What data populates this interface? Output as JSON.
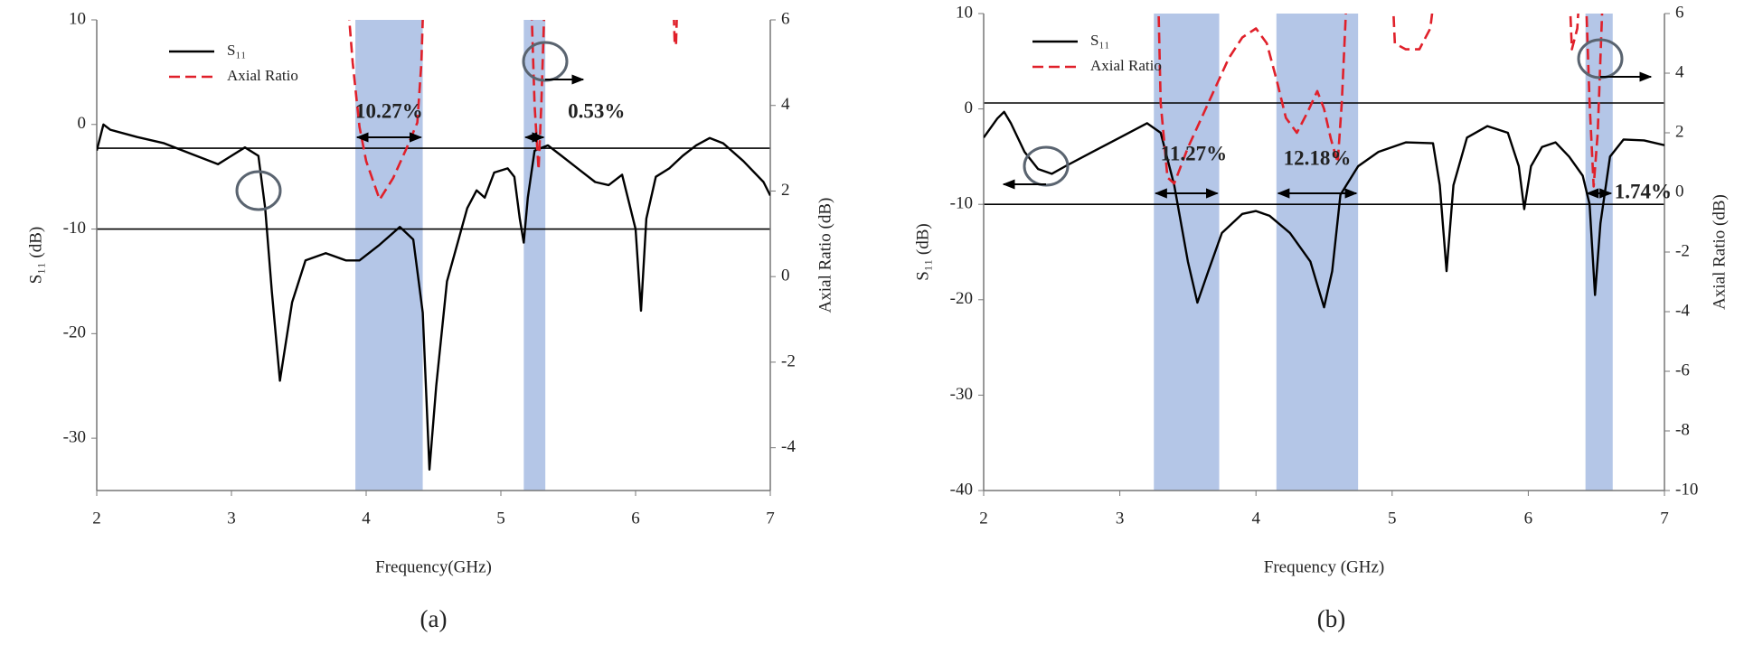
{
  "chart_data": [
    {
      "type": "line",
      "x_label": "Frequency(GHz)",
      "y_label": "S₁₁ (dB)",
      "y2_label": "Axial Ratio (dB)",
      "panel_label": "(a)",
      "xlim": [
        2,
        7
      ],
      "xticks": [
        2,
        3,
        4,
        5,
        6,
        7
      ],
      "ylim": [
        -35,
        10
      ],
      "yticks": [
        -30,
        -20,
        -10,
        0,
        10
      ],
      "y2lim": [
        -5,
        6
      ],
      "y2ticks": [
        -4,
        -2,
        0,
        2,
        4,
        6
      ],
      "series": [
        {
          "name": "S₁₁",
          "color": "#000000",
          "dash": false,
          "x": [
            2,
            2.05,
            2.1,
            2.3,
            2.5,
            2.7,
            2.9,
            3.0,
            3.1,
            3.2,
            3.25,
            3.3,
            3.36,
            3.45,
            3.55,
            3.7,
            3.85,
            3.95,
            4.1,
            4.25,
            4.35,
            4.42,
            4.47,
            4.52,
            4.6,
            4.75,
            4.82,
            4.88,
            4.95,
            5.05,
            5.1,
            5.14,
            5.17,
            5.2,
            5.25,
            5.35,
            5.45,
            5.6,
            5.7,
            5.8,
            5.9,
            6.0,
            6.04,
            6.08,
            6.15,
            6.25,
            6.35,
            6.45,
            6.55,
            6.65,
            6.8,
            6.95,
            7.0
          ],
          "values": [
            -2.5,
            0,
            -0.5,
            -1.2,
            -1.8,
            -2.8,
            -3.8,
            -3,
            -2.2,
            -3,
            -8,
            -16,
            -24.5,
            -17,
            -13,
            -12.3,
            -13,
            -13,
            -11.5,
            -9.8,
            -11,
            -18,
            -33,
            -25,
            -15,
            -8,
            -6.3,
            -7,
            -4.6,
            -4.2,
            -5,
            -9,
            -11.3,
            -7,
            -2.5,
            -2,
            -3,
            -4.5,
            -5.5,
            -5.8,
            -4.8,
            -10,
            -17.8,
            -9,
            -5,
            -4.2,
            -3,
            -2,
            -1.3,
            -1.8,
            -3.5,
            -5.5,
            -6.8
          ]
        },
        {
          "name": "Axial Ratio",
          "color": "#e0202a",
          "dash": true,
          "axis": "y2",
          "x": [
            3.85,
            3.9,
            3.95,
            4.0,
            4.1,
            4.2,
            4.3,
            4.38,
            4.41,
            4.43,
            4.8,
            5.22,
            5.25,
            5.28,
            5.3,
            5.33,
            5.8,
            6.28,
            6.29,
            6.3,
            6.31
          ],
          "values": [
            7,
            5,
            3.5,
            2.7,
            1.8,
            2.3,
            3.0,
            3.6,
            5,
            7,
            null,
            7,
            4,
            2.5,
            4,
            7,
            null,
            6.5,
            5.5,
            5.4,
            6.5
          ]
        }
      ],
      "ref_lines": [
        {
          "axis": "y",
          "value": -10
        },
        {
          "axis": "y2",
          "value": 3
        }
      ],
      "bands": [
        {
          "range": [
            3.92,
            4.42
          ],
          "label": "10.27%"
        },
        {
          "range": [
            5.17,
            5.33
          ],
          "label": "0.53%"
        }
      ],
      "band_color": "#b4c6e7"
    },
    {
      "type": "line",
      "x_label": "Frequency (GHz)",
      "y_label": "S₁₁ (dB)",
      "y2_label": "Axial Ratio (dB)",
      "panel_label": "(b)",
      "xlim": [
        2,
        7
      ],
      "xticks": [
        2,
        3,
        4,
        5,
        6,
        7
      ],
      "ylim": [
        -40,
        10
      ],
      "yticks": [
        -40,
        -30,
        -20,
        -10,
        0,
        10
      ],
      "y2lim": [
        -10,
        6
      ],
      "y2ticks": [
        -10,
        -8,
        -6,
        -4,
        -2,
        0,
        2,
        4,
        6
      ],
      "series": [
        {
          "name": "S₁₁",
          "color": "#000000",
          "dash": false,
          "x": [
            2,
            2.1,
            2.15,
            2.2,
            2.3,
            2.4,
            2.5,
            2.6,
            2.8,
            3.0,
            3.2,
            3.3,
            3.4,
            3.5,
            3.57,
            3.65,
            3.75,
            3.9,
            4.0,
            4.1,
            4.25,
            4.4,
            4.5,
            4.56,
            4.62,
            4.75,
            4.9,
            5.1,
            5.3,
            5.35,
            5.4,
            5.45,
            5.55,
            5.7,
            5.85,
            5.93,
            5.97,
            6.02,
            6.1,
            6.2,
            6.3,
            6.4,
            6.45,
            6.49,
            6.53,
            6.6,
            6.7,
            6.85,
            7.0
          ],
          "values": [
            -3,
            -1,
            -0.3,
            -1.5,
            -4.5,
            -6.3,
            -6.8,
            -6,
            -4.5,
            -3,
            -1.5,
            -2.5,
            -8,
            -16,
            -20.3,
            -17,
            -13,
            -11,
            -10.7,
            -11.2,
            -13,
            -16,
            -20.8,
            -17,
            -9,
            -6,
            -4.5,
            -3.5,
            -3.6,
            -8,
            -17,
            -8,
            -3,
            -1.8,
            -2.5,
            -6,
            -10.5,
            -6,
            -4,
            -3.5,
            -5,
            -7,
            -10,
            -19.5,
            -12,
            -5,
            -3.2,
            -3.3,
            -3.8
          ]
        },
        {
          "name": "Axial Ratio",
          "color": "#e0202a",
          "dash": true,
          "axis": "y2",
          "x": [
            3.28,
            3.3,
            3.35,
            3.4,
            3.5,
            3.6,
            3.7,
            3.8,
            3.9,
            4.0,
            4.08,
            4.15,
            4.22,
            4.3,
            4.38,
            4.45,
            4.5,
            4.55,
            4.6,
            4.63,
            4.67,
            4.8,
            5.0,
            5.02,
            5.1,
            5.2,
            5.28,
            5.32,
            5.8,
            6.3,
            6.32,
            6.36,
            6.38,
            6.4,
            6.42,
            6.45,
            6.48,
            6.51,
            6.55
          ],
          "values": [
            7,
            3,
            0.5,
            0.3,
            1.5,
            2.5,
            3.5,
            4.5,
            5.2,
            5.5,
            5,
            3.8,
            2.5,
            2,
            2.7,
            3.4,
            2.8,
            1.8,
            1,
            3,
            7,
            null,
            7,
            5,
            4.8,
            4.8,
            5.5,
            7,
            null,
            7,
            4.8,
            5.5,
            7,
            null,
            7,
            3,
            0.2,
            2,
            7
          ]
        }
      ],
      "ref_lines": [
        {
          "axis": "y",
          "value": -10
        },
        {
          "axis": "y2",
          "value": 3
        }
      ],
      "bands": [
        {
          "range": [
            3.25,
            3.73
          ],
          "label": "11.27%"
        },
        {
          "range": [
            4.15,
            4.75
          ],
          "label": "12.18%"
        },
        {
          "range": [
            6.42,
            6.62
          ],
          "label": "1.74%"
        }
      ],
      "band_color": "#b4c6e7"
    }
  ]
}
